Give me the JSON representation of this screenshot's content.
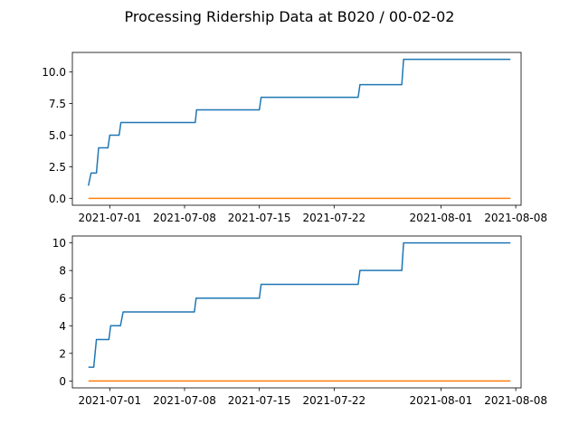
{
  "suptitle": "Processing Ridership Data at B020 / 00-02-02",
  "chart_data": [
    {
      "type": "line",
      "title": "",
      "xlabel": "",
      "ylabel": "",
      "x_axis": "date",
      "xlim": [
        "2021-06-27T12:00",
        "2021-08-08T12:00"
      ],
      "ylim": [
        -0.55,
        11.55
      ],
      "xticks": [
        {
          "date": "2021-07-01",
          "label": "2021-07-01"
        },
        {
          "date": "2021-07-08",
          "label": "2021-07-08"
        },
        {
          "date": "2021-07-15",
          "label": "2021-07-15"
        },
        {
          "date": "2021-07-22",
          "label": "2021-07-22"
        },
        {
          "date": "2021-08-01",
          "label": "2021-08-01"
        },
        {
          "date": "2021-08-08",
          "label": "2021-08-08"
        }
      ],
      "yticks": [
        {
          "value": 0.0,
          "label": "0.0"
        },
        {
          "value": 2.5,
          "label": "2.5"
        },
        {
          "value": 5.0,
          "label": "5.0"
        },
        {
          "value": 7.5,
          "label": "7.5"
        },
        {
          "value": 10.0,
          "label": "10.0"
        }
      ],
      "grid": false,
      "series": [
        {
          "color": "#1f77b4",
          "points": [
            [
              "2021-06-29T00:00",
              1
            ],
            [
              "2021-06-29T06:00",
              2
            ],
            [
              "2021-06-29T18:00",
              2
            ],
            [
              "2021-06-29T23:00",
              4
            ],
            [
              "2021-06-30T20:00",
              4
            ],
            [
              "2021-07-01T00:00",
              5
            ],
            [
              "2021-07-01T21:00",
              5
            ],
            [
              "2021-07-02T01:00",
              6
            ],
            [
              "2021-07-09T00:00",
              6
            ],
            [
              "2021-07-09T03:00",
              7
            ],
            [
              "2021-07-15T00:00",
              7
            ],
            [
              "2021-07-15T04:00",
              8
            ],
            [
              "2021-07-24T06:00",
              8
            ],
            [
              "2021-07-24T10:00",
              9
            ],
            [
              "2021-07-28T08:00",
              9
            ],
            [
              "2021-07-28T12:00",
              11
            ],
            [
              "2021-08-07T12:00",
              11
            ]
          ]
        },
        {
          "color": "#ff7f0e",
          "points": [
            [
              "2021-06-29T00:00",
              0
            ],
            [
              "2021-08-07T12:00",
              0
            ]
          ]
        }
      ]
    },
    {
      "type": "line",
      "title": "",
      "xlabel": "",
      "ylabel": "",
      "x_axis": "date",
      "xlim": [
        "2021-06-27T12:00",
        "2021-08-08T12:00"
      ],
      "ylim": [
        -0.5,
        10.5
      ],
      "xticks": [
        {
          "date": "2021-07-01",
          "label": "2021-07-01"
        },
        {
          "date": "2021-07-08",
          "label": "2021-07-08"
        },
        {
          "date": "2021-07-15",
          "label": "2021-07-15"
        },
        {
          "date": "2021-07-22",
          "label": "2021-07-22"
        },
        {
          "date": "2021-08-01",
          "label": "2021-08-01"
        },
        {
          "date": "2021-08-08",
          "label": "2021-08-08"
        }
      ],
      "yticks": [
        {
          "value": 0,
          "label": "0"
        },
        {
          "value": 2,
          "label": "2"
        },
        {
          "value": 4,
          "label": "4"
        },
        {
          "value": 6,
          "label": "6"
        },
        {
          "value": 8,
          "label": "8"
        },
        {
          "value": 10,
          "label": "10"
        }
      ],
      "grid": false,
      "series": [
        {
          "color": "#1f77b4",
          "points": [
            [
              "2021-06-29T00:00",
              1
            ],
            [
              "2021-06-29T12:00",
              1
            ],
            [
              "2021-06-29T18:00",
              3
            ],
            [
              "2021-06-30T22:00",
              3
            ],
            [
              "2021-07-01T02:00",
              4
            ],
            [
              "2021-07-02T00:00",
              4
            ],
            [
              "2021-07-02T06:00",
              5
            ],
            [
              "2021-07-08T22:00",
              5
            ],
            [
              "2021-07-09T02:00",
              6
            ],
            [
              "2021-07-15T00:00",
              6
            ],
            [
              "2021-07-15T04:00",
              7
            ],
            [
              "2021-07-24T06:00",
              7
            ],
            [
              "2021-07-24T10:00",
              8
            ],
            [
              "2021-07-28T08:00",
              8
            ],
            [
              "2021-07-28T12:00",
              10
            ],
            [
              "2021-08-07T12:00",
              10
            ]
          ]
        },
        {
          "color": "#ff7f0e",
          "points": [
            [
              "2021-06-29T00:00",
              0
            ],
            [
              "2021-08-07T12:00",
              0
            ]
          ]
        }
      ]
    }
  ]
}
